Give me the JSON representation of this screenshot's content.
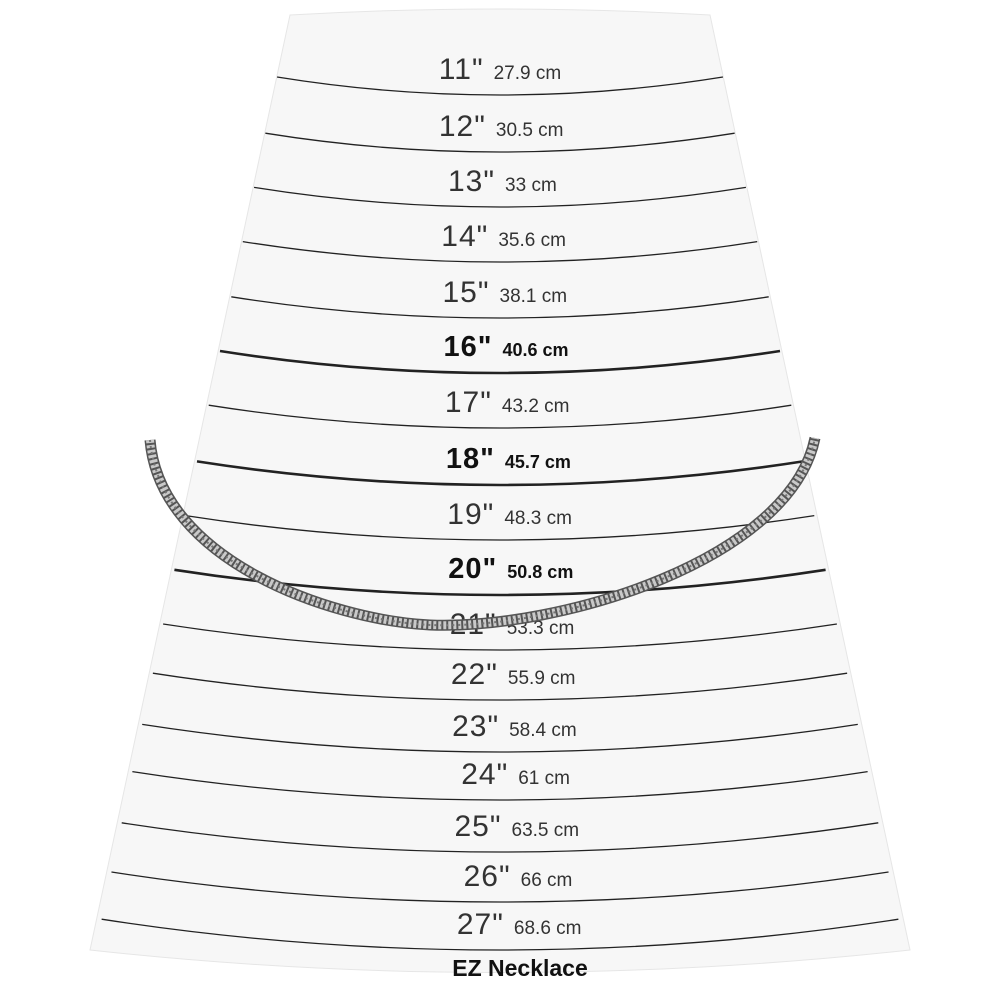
{
  "sizes": [
    {
      "inches": "11\"",
      "cm": "27.9 cm",
      "bold": false
    },
    {
      "inches": "12\"",
      "cm": "30.5 cm",
      "bold": false
    },
    {
      "inches": "13\"",
      "cm": "33 cm",
      "bold": false
    },
    {
      "inches": "14\"",
      "cm": "35.6 cm",
      "bold": false
    },
    {
      "inches": "15\"",
      "cm": "38.1 cm",
      "bold": false
    },
    {
      "inches": "16\"",
      "cm": "40.6 cm",
      "bold": true
    },
    {
      "inches": "17\"",
      "cm": "43.2 cm",
      "bold": false
    },
    {
      "inches": "18\"",
      "cm": "45.7 cm",
      "bold": true
    },
    {
      "inches": "19\"",
      "cm": "48.3 cm",
      "bold": false
    },
    {
      "inches": "20\"",
      "cm": "50.8 cm",
      "bold": true
    },
    {
      "inches": "21\"",
      "cm": "53.3 cm",
      "bold": false
    },
    {
      "inches": "22\"",
      "cm": "55.9 cm",
      "bold": false
    },
    {
      "inches": "23\"",
      "cm": "58.4 cm",
      "bold": false
    },
    {
      "inches": "24\"",
      "cm": "61 cm",
      "bold": false
    },
    {
      "inches": "25\"",
      "cm": "63.5 cm",
      "bold": false
    },
    {
      "inches": "26\"",
      "cm": "66 cm",
      "bold": false
    },
    {
      "inches": "27\"",
      "cm": "68.6 cm",
      "bold": false
    }
  ],
  "brand": "EZ Necklace",
  "colors": {
    "cone": "#f7f7f7",
    "line": "#222222",
    "chain": "#8a8a8a"
  }
}
